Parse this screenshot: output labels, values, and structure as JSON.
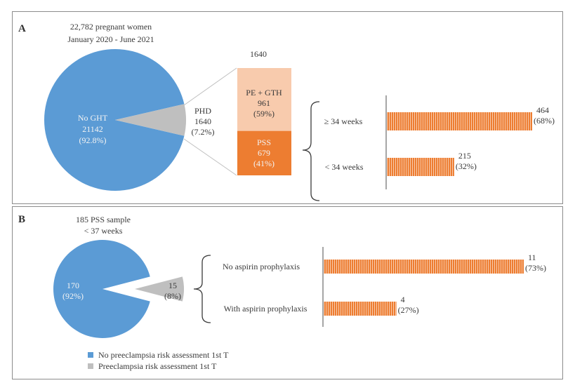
{
  "colors": {
    "blue": "#5b9bd5",
    "gray": "#bfbfbf",
    "orange": "#ed7d31",
    "light_orange": "#f8cbad",
    "axis_gray": "#a6a6a6",
    "frame": "#8c8c8c"
  },
  "panel_a": {
    "label": "A",
    "header_line1": "22,782 pregnant women",
    "header_line2": "January 2020 - June 2021",
    "pie_blue_label": [
      "No GHT",
      "21142",
      "(92.8%)"
    ],
    "pie_gray_label": [
      "PHD",
      "1640",
      "(7.2%)"
    ],
    "stack_total": "1640",
    "stack_top_label": [
      "PE + GTH",
      "961",
      "(59%)"
    ],
    "stack_bottom_label": [
      "PSS",
      "679",
      "(41%)"
    ]
  },
  "panel_b": {
    "label": "B",
    "header_line1": "185 PSS sample",
    "header_line2": "< 37  weeks",
    "pie_blue_label": [
      "170",
      "(92%)"
    ],
    "pie_gray_label": [
      "15",
      "(8%)"
    ],
    "legend": [
      {
        "label": "No preeclampsia risk assessment 1st T",
        "color": "#5b9bd5"
      },
      {
        "label": "Preeclampsia risk assessment 1st T",
        "color": "#bfbfbf"
      }
    ]
  },
  "chart_data": [
    {
      "type": "pie",
      "categories": [
        "No GHT",
        "PHD"
      ],
      "values": [
        21142,
        1640
      ],
      "percentages": [
        92.8,
        7.2
      ],
      "title": "22,782 pregnant women January 2020 - June 2021"
    },
    {
      "type": "bar",
      "stacked": true,
      "total": 1640,
      "categories": [
        "PE + GTH",
        "PSS"
      ],
      "values": [
        961,
        679
      ],
      "percentages": [
        59,
        41
      ]
    },
    {
      "type": "bar",
      "orientation": "horizontal",
      "categories": [
        "≥ 34 weeks",
        "< 34 weeks"
      ],
      "values": [
        464,
        215
      ],
      "percentages": [
        68,
        32
      ]
    },
    {
      "type": "pie",
      "categories": [
        "No preeclampsia risk assessment 1st T",
        "Preeclampsia risk assessment 1st T"
      ],
      "values": [
        170,
        15
      ],
      "percentages": [
        92,
        8
      ],
      "title": "185 PSS sample < 37  weeks"
    },
    {
      "type": "bar",
      "orientation": "horizontal",
      "categories": [
        "No aspirin prophylaxis",
        "With aspirin prophylaxis"
      ],
      "values": [
        11,
        4
      ],
      "percentages": [
        73,
        27
      ]
    }
  ]
}
